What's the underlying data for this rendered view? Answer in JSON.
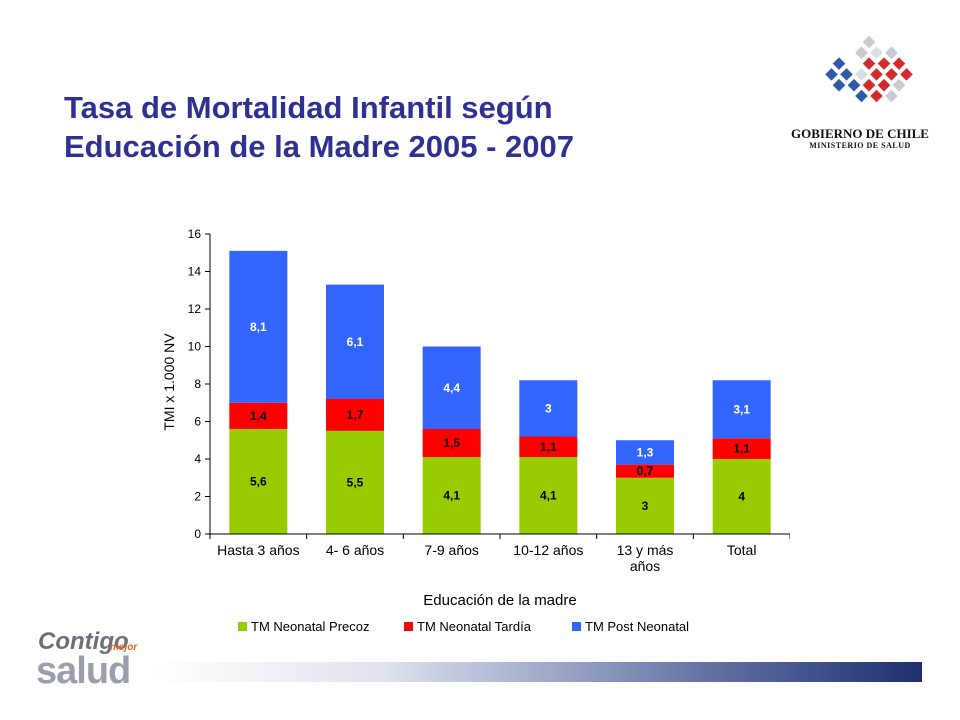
{
  "slide": {
    "title_line1": "Tasa de Mortalidad Infantil según",
    "title_line2": "Educación de la Madre 2005 - 2007"
  },
  "logo_government": {
    "line1": "GOBIERNO DE CHILE",
    "line2": "MINISTERIO DE SALUD"
  },
  "logo_campaign": {
    "word1": "Contigo",
    "word2": "mejor",
    "word3": "salud"
  },
  "colors": {
    "title": "#2e3192",
    "precoz": "#99cc00",
    "tardia": "#ff0000",
    "post": "#3366ff"
  },
  "chart_data": {
    "type": "bar",
    "stacked": true,
    "categories": [
      "Hasta 3 años",
      "4- 6 años",
      "7-9 años",
      "10-12 años",
      "13 y más años",
      "Total"
    ],
    "category_lines": [
      [
        "Hasta 3 años"
      ],
      [
        "4- 6 años"
      ],
      [
        "7-9 años"
      ],
      [
        "10-12 años"
      ],
      [
        "13 y más",
        "años"
      ],
      [
        "Total"
      ]
    ],
    "series": [
      {
        "name": "TM Neonatal Precoz",
        "color": "#99cc00",
        "values": [
          5.6,
          5.5,
          4.1,
          4.1,
          3,
          4
        ],
        "labels": [
          "5,6",
          "5,5",
          "4,1",
          "4,1",
          "3",
          "4"
        ]
      },
      {
        "name": "TM Neonatal Tardía",
        "color": "#ff0000",
        "values": [
          1.4,
          1.7,
          1.5,
          1.1,
          0.7,
          1.1
        ],
        "labels": [
          "1,4",
          "1,7",
          "1,5",
          "1,1",
          "0,7",
          "1,1"
        ]
      },
      {
        "name": "TM Post Neonatal",
        "color": "#3366ff",
        "values": [
          8.1,
          6.1,
          4.4,
          3,
          1.3,
          3.1
        ],
        "labels": [
          "8,1",
          "6,1",
          "4,4",
          "3",
          "1,3",
          "3,1"
        ]
      }
    ],
    "xlabel": "Educación de la madre",
    "ylabel": "TMI x 1.000 NV",
    "ylim": [
      0,
      16
    ],
    "yticks": [
      0,
      2,
      4,
      6,
      8,
      10,
      12,
      14,
      16
    ],
    "grid": false,
    "legend": "bottom"
  }
}
